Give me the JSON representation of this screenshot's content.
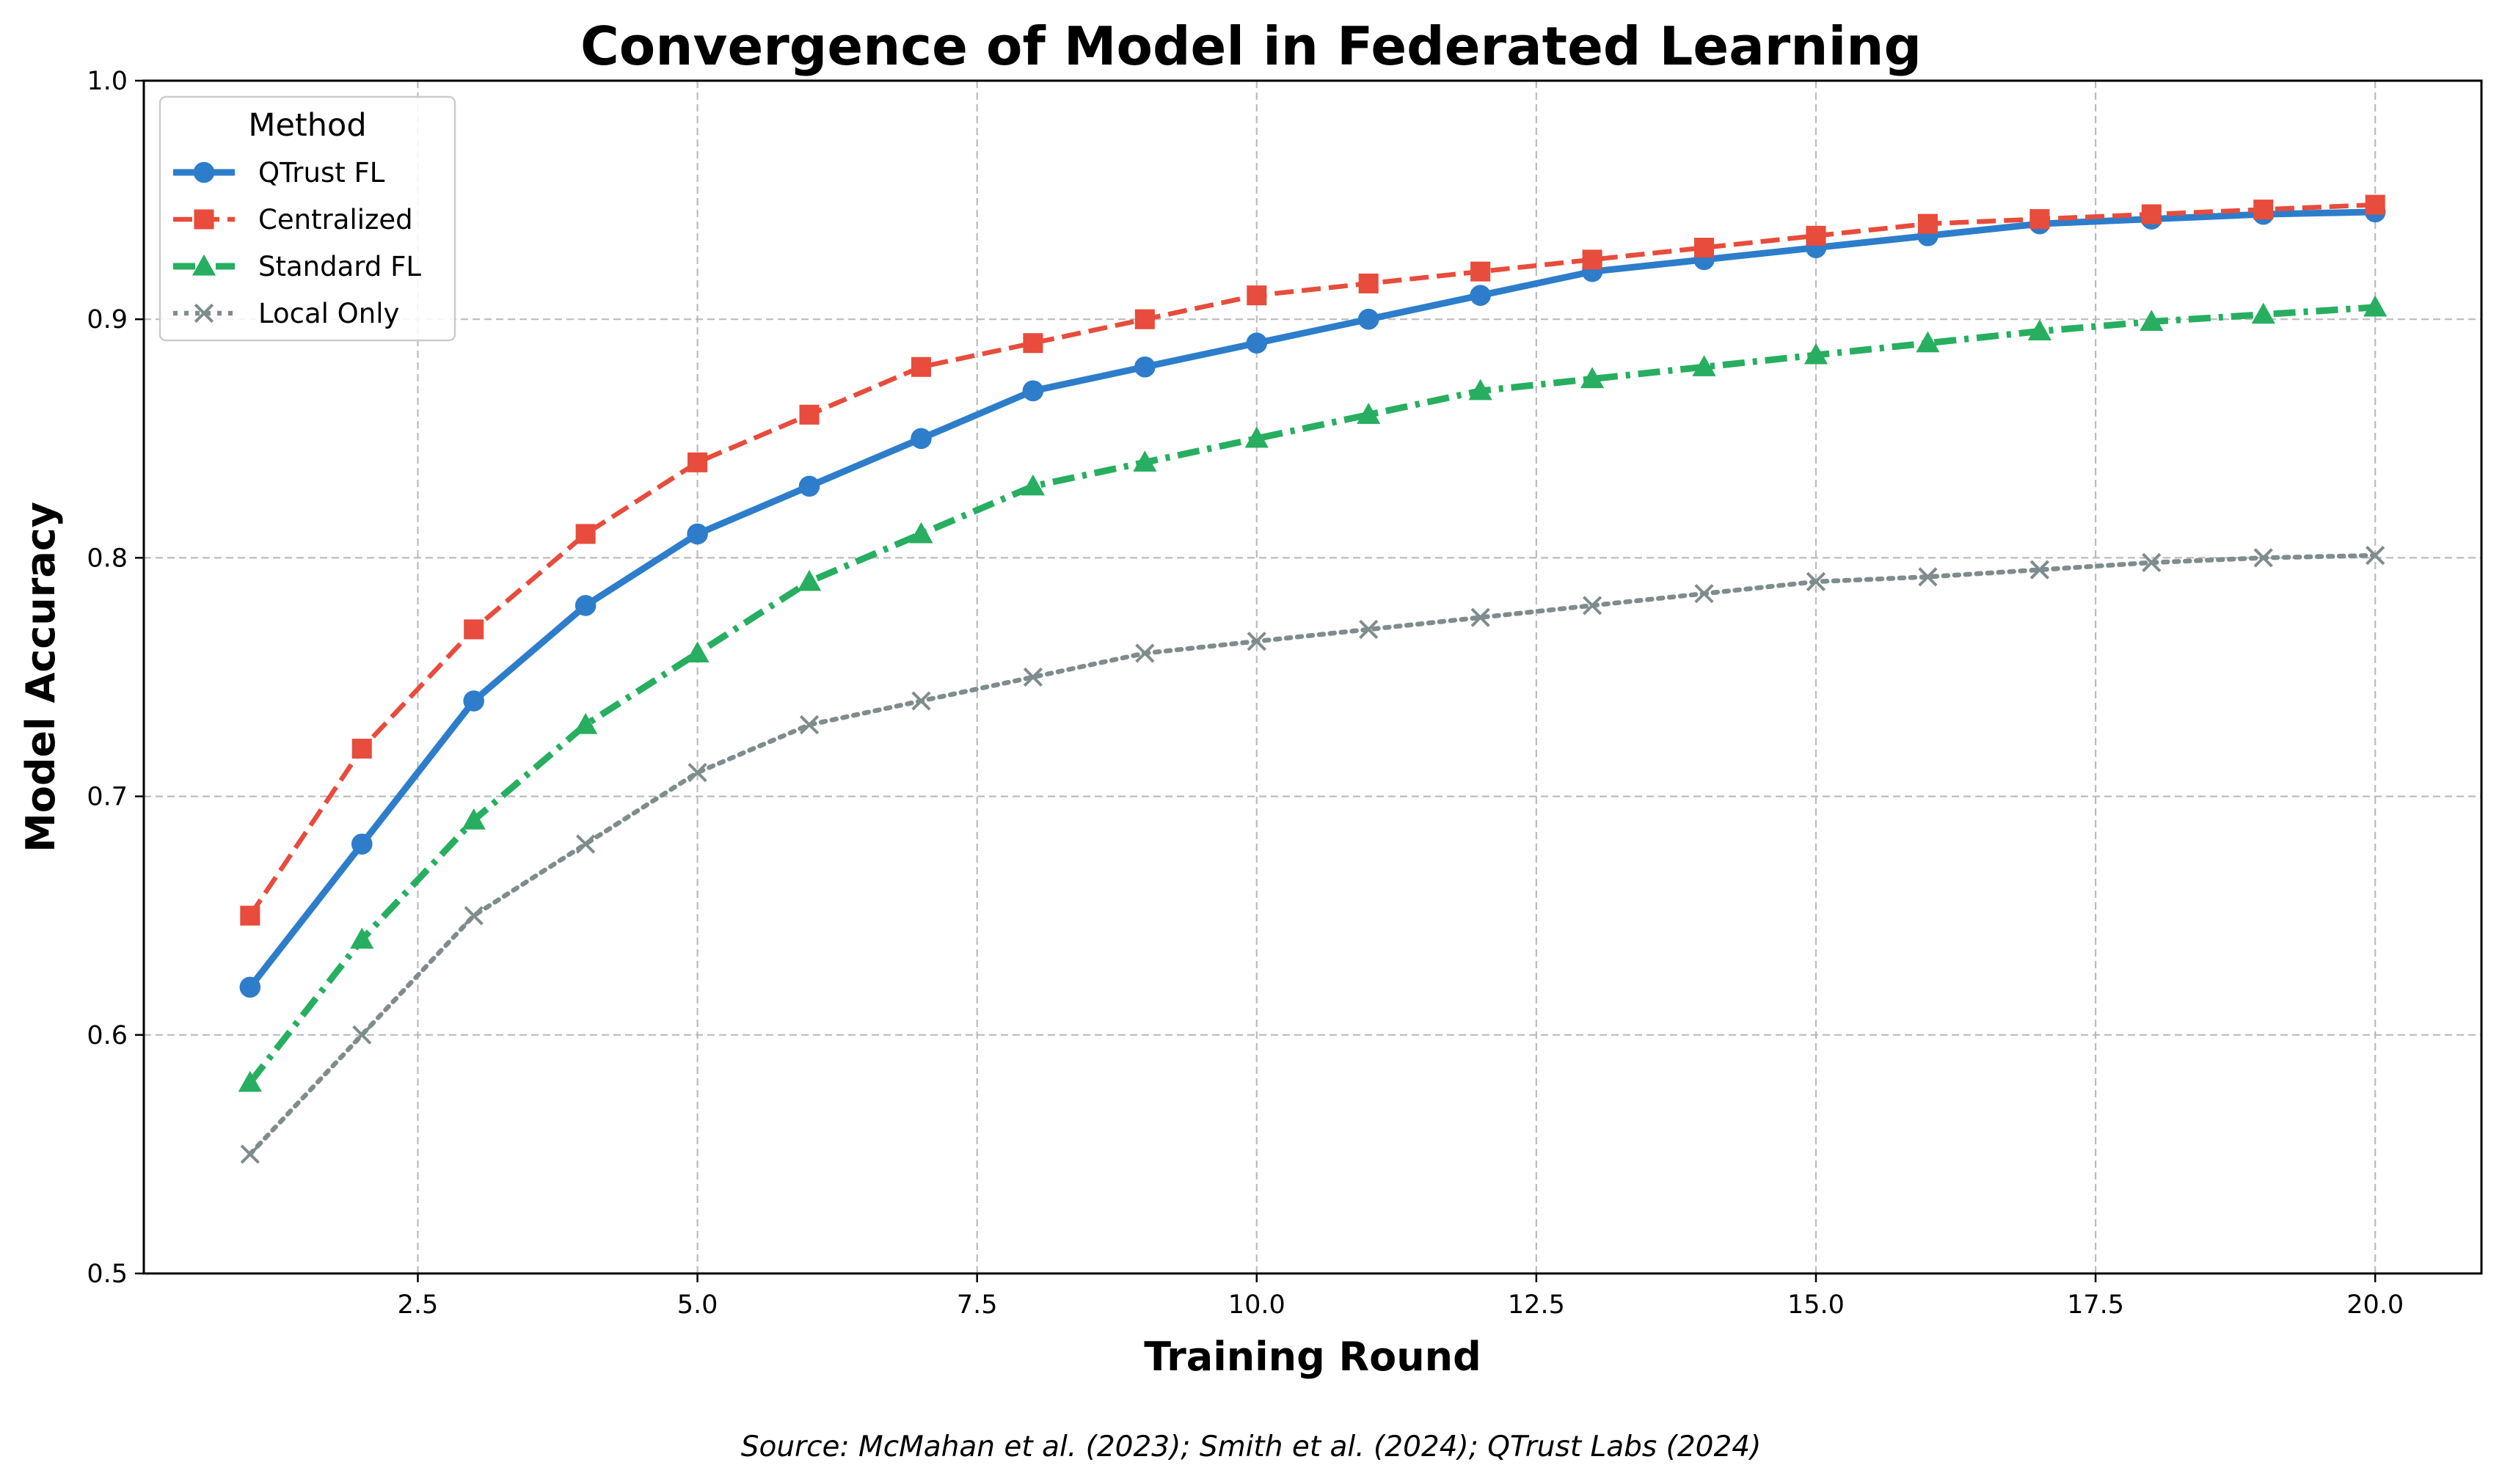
{
  "chart_data": {
    "type": "line",
    "title": "Convergence of Model in Federated Learning",
    "xlabel": "Training Round",
    "ylabel": "Model Accuracy",
    "xlim": [
      0.05,
      20.95
    ],
    "ylim": [
      0.5,
      1.0
    ],
    "xticks": [
      2.5,
      5.0,
      7.5,
      10.0,
      12.5,
      15.0,
      17.5,
      20.0
    ],
    "xtick_labels": [
      "2.5",
      "5.0",
      "7.5",
      "10.0",
      "12.5",
      "15.0",
      "17.5",
      "20.0"
    ],
    "yticks": [
      0.5,
      0.6,
      0.7,
      0.8,
      0.9,
      1.0
    ],
    "ytick_labels": [
      "0.5",
      "0.6",
      "0.7",
      "0.8",
      "0.9",
      "1.0"
    ],
    "grid": true,
    "legend_title": "Method",
    "legend_position": "top-left",
    "x": [
      1,
      2,
      3,
      4,
      5,
      6,
      7,
      8,
      9,
      10,
      11,
      12,
      13,
      14,
      15,
      16,
      17,
      18,
      19,
      20
    ],
    "series": [
      {
        "name": "QTrust FL",
        "color": "#2d7dcb",
        "line_style": "solid",
        "marker": "circle",
        "values": [
          0.62,
          0.68,
          0.74,
          0.78,
          0.81,
          0.83,
          0.85,
          0.87,
          0.88,
          0.89,
          0.9,
          0.91,
          0.92,
          0.925,
          0.93,
          0.935,
          0.94,
          0.942,
          0.944,
          0.945
        ]
      },
      {
        "name": "Centralized",
        "color": "#e74c3c",
        "line_style": "dashed",
        "marker": "square",
        "values": [
          0.65,
          0.72,
          0.77,
          0.81,
          0.84,
          0.86,
          0.88,
          0.89,
          0.9,
          0.91,
          0.915,
          0.92,
          0.925,
          0.93,
          0.935,
          0.94,
          0.942,
          0.944,
          0.946,
          0.948
        ]
      },
      {
        "name": "Standard FL",
        "color": "#27ae60",
        "line_style": "dashdot",
        "marker": "triangle",
        "values": [
          0.58,
          0.64,
          0.69,
          0.73,
          0.76,
          0.79,
          0.81,
          0.83,
          0.84,
          0.85,
          0.86,
          0.87,
          0.875,
          0.88,
          0.885,
          0.89,
          0.895,
          0.899,
          0.902,
          0.905
        ]
      },
      {
        "name": "Local Only",
        "color": "#7f8c8d",
        "line_style": "dotted",
        "marker": "x",
        "values": [
          0.55,
          0.6,
          0.65,
          0.68,
          0.71,
          0.73,
          0.74,
          0.75,
          0.76,
          0.765,
          0.77,
          0.775,
          0.78,
          0.785,
          0.79,
          0.792,
          0.795,
          0.798,
          0.8,
          0.801
        ]
      }
    ],
    "source": "Source: McMahan et al. (2023); Smith et al. (2024); QTrust Labs (2024)"
  }
}
